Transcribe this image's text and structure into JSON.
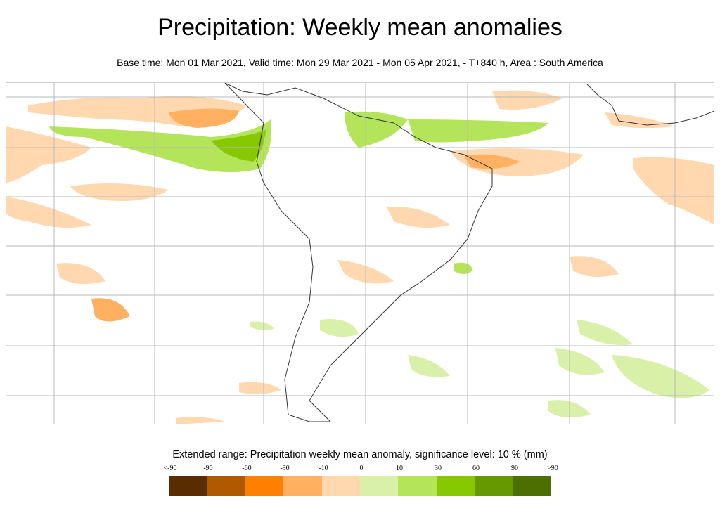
{
  "title": "Precipitation: Weekly mean anomalies",
  "subtitle": "Base time: Mon 01 Mar 2021, Valid time: Mon 29 Mar 2021 - Mon 05 Apr 2021, - T+840 h, Area : South America",
  "legend": {
    "title": "Extended range: Precipitation weekly mean anomaly, significance level: 10 % (mm)",
    "ticks": [
      "<-90",
      "-90",
      "-60",
      "-30",
      "-10",
      "0",
      "10",
      "30",
      "60",
      "90",
      ">90"
    ],
    "colors": [
      "#5a2d00",
      "#b05a00",
      "#ff8000",
      "#ffb060",
      "#ffd8b0",
      "#d8f0a8",
      "#b4e45a",
      "#88c800",
      "#669900",
      "#4d6e00"
    ]
  }
}
